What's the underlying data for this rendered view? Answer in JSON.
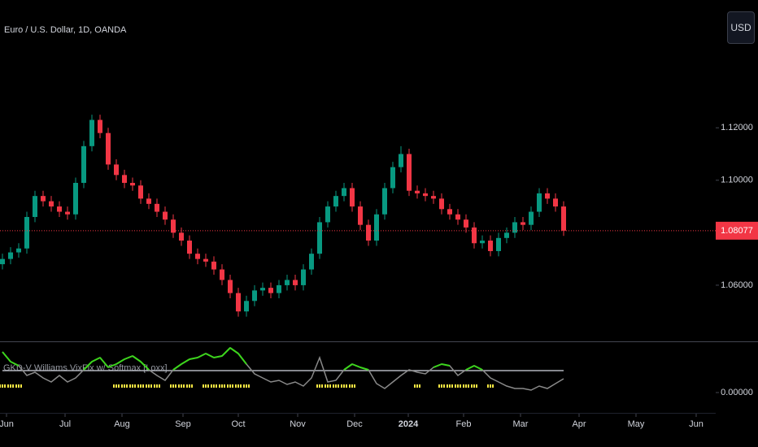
{
  "chart_data": [
    {
      "type": "candlestick",
      "title": "Euro / U.S. Dollar, 1D, OANDA",
      "currency": "USD",
      "open": [
        1.068,
        1.07,
        1.0725,
        1.074,
        1.086,
        1.094,
        1.092,
        1.09,
        1.088,
        1.087,
        1.099,
        1.113,
        1.123,
        1.118,
        1.106,
        1.102,
        1.099,
        1.098,
        1.093,
        1.091,
        1.088,
        1.085,
        1.08,
        1.077,
        1.072,
        1.07,
        1.069,
        1.066,
        1.062,
        1.057,
        1.05,
        1.054,
        1.058,
        1.059,
        1.057,
        1.06,
        1.062,
        1.06,
        1.066,
        1.072,
        1.084,
        1.09,
        1.094,
        1.097,
        1.09,
        1.083,
        1.077,
        1.087,
        1.097,
        1.105,
        1.11,
        1.096,
        1.095,
        1.094,
        1.093,
        1.089,
        1.087,
        1.085,
        1.082,
        1.076,
        1.077,
        1.073,
        1.078,
        1.08,
        1.084,
        1.083,
        1.088,
        1.095,
        1.093,
        1.09
      ],
      "high": [
        1.072,
        1.0745,
        1.076,
        1.088,
        1.096,
        1.096,
        1.094,
        1.092,
        1.09,
        1.101,
        1.115,
        1.125,
        1.125,
        1.12,
        1.108,
        1.104,
        1.101,
        1.1,
        1.095,
        1.093,
        1.09,
        1.087,
        1.082,
        1.079,
        1.074,
        1.072,
        1.071,
        1.068,
        1.064,
        1.059,
        1.056,
        1.06,
        1.061,
        1.061,
        1.062,
        1.064,
        1.064,
        1.068,
        1.074,
        1.086,
        1.092,
        1.096,
        1.099,
        1.099,
        1.092,
        1.085,
        1.089,
        1.099,
        1.107,
        1.113,
        1.112,
        1.098,
        1.097,
        1.096,
        1.095,
        1.091,
        1.089,
        1.087,
        1.084,
        1.079,
        1.079,
        1.08,
        1.082,
        1.086,
        1.086,
        1.09,
        1.097,
        1.097,
        1.095,
        1.092
      ],
      "low": [
        1.066,
        1.068,
        1.0705,
        1.072,
        1.084,
        1.09,
        1.088,
        1.086,
        1.085,
        1.085,
        1.097,
        1.111,
        1.116,
        1.104,
        1.1,
        1.097,
        1.096,
        1.091,
        1.089,
        1.086,
        1.083,
        1.078,
        1.075,
        1.07,
        1.068,
        1.067,
        1.064,
        1.06,
        1.055,
        1.048,
        1.048,
        1.052,
        1.056,
        1.055,
        1.055,
        1.058,
        1.058,
        1.058,
        1.064,
        1.07,
        1.082,
        1.088,
        1.092,
        1.088,
        1.081,
        1.075,
        1.075,
        1.085,
        1.095,
        1.103,
        1.094,
        1.093,
        1.092,
        1.091,
        1.087,
        1.085,
        1.083,
        1.08,
        1.074,
        1.074,
        1.071,
        1.071,
        1.076,
        1.078,
        1.081,
        1.081,
        1.086,
        1.091,
        1.088,
        1.0788
      ],
      "close": [
        1.07,
        1.0725,
        1.074,
        1.086,
        1.094,
        1.092,
        1.09,
        1.088,
        1.087,
        1.099,
        1.113,
        1.123,
        1.118,
        1.106,
        1.102,
        1.099,
        1.098,
        1.093,
        1.091,
        1.088,
        1.085,
        1.08,
        1.077,
        1.072,
        1.07,
        1.069,
        1.066,
        1.062,
        1.057,
        1.05,
        1.054,
        1.058,
        1.059,
        1.057,
        1.06,
        1.062,
        1.06,
        1.066,
        1.072,
        1.084,
        1.09,
        1.094,
        1.097,
        1.09,
        1.083,
        1.077,
        1.087,
        1.097,
        1.105,
        1.11,
        1.096,
        1.095,
        1.094,
        1.093,
        1.089,
        1.087,
        1.085,
        1.082,
        1.076,
        1.077,
        1.073,
        1.078,
        1.08,
        1.084,
        1.083,
        1.088,
        1.095,
        1.093,
        1.09,
        1.08077
      ],
      "up_color": "#089981",
      "down_color": "#f23645",
      "last_price_color": "#f23645",
      "xlim": [
        -0.3,
        87.7
      ],
      "xticks": [
        {
          "value": 0.5,
          "label": "Jun"
        },
        {
          "value": 7.7,
          "label": "Jul"
        },
        {
          "value": 14.7,
          "label": "Aug"
        },
        {
          "value": 22.2,
          "label": "Sep"
        },
        {
          "value": 29,
          "label": "Oct"
        },
        {
          "value": 36.3,
          "label": "Nov"
        },
        {
          "value": 43.3,
          "label": "Dec"
        },
        {
          "value": 49.9,
          "label": "2024"
        },
        {
          "value": 56.7,
          "label": "Feb"
        },
        {
          "value": 63.7,
          "label": "Mar"
        },
        {
          "value": 70.9,
          "label": "Apr"
        },
        {
          "value": 77.9,
          "label": "May"
        },
        {
          "value": 85.3,
          "label": "Jun"
        }
      ],
      "ylim": [
        1.0386,
        1.1687
      ],
      "yticks": [
        {
          "value": 1.06,
          "label": "1.06000"
        },
        {
          "value": 1.08,
          "label": "1.08000"
        },
        {
          "value": 1.1,
          "label": "1.10000"
        },
        {
          "value": 1.12,
          "label": "1.12000"
        }
      ]
    },
    {
      "type": "line",
      "title": "GKD-V Williams VixFix w/ Softmax [Loxx]",
      "values": [
        2.5,
        1.9,
        1.65,
        1.05,
        1.25,
        0.9,
        0.65,
        1.05,
        0.65,
        0.9,
        1.4,
        1.9,
        2.15,
        1.55,
        1.75,
        2.05,
        2.25,
        1.9,
        1.4,
        1.05,
        0.75,
        1.4,
        1.75,
        2.05,
        2.15,
        2.4,
        2.15,
        2.25,
        2.75,
        2.4,
        1.75,
        1.15,
        0.9,
        0.65,
        0.75,
        0.5,
        0.65,
        0.4,
        0.9,
        2.15,
        0.65,
        0.75,
        1.4,
        1.75,
        1.55,
        1.4,
        0.55,
        0.25,
        0.65,
        1.05,
        1.4,
        1.25,
        1.15,
        1.55,
        1.75,
        1.65,
        1.05,
        1.4,
        1.65,
        1.4,
        0.9,
        0.65,
        0.4,
        0.25,
        0.25,
        0.15,
        0.4,
        0.25,
        0.55,
        0.85
      ],
      "signal": [
        1,
        1,
        1,
        0,
        0,
        0,
        0,
        0,
        0,
        0,
        0,
        0,
        0,
        0,
        1,
        1,
        1,
        1,
        1,
        1,
        0,
        1,
        1,
        1,
        0,
        1,
        1,
        1,
        1,
        1,
        1,
        0,
        0,
        0,
        0,
        0,
        0,
        0,
        0,
        1,
        1,
        1,
        1,
        1,
        0,
        0,
        0,
        0,
        0,
        0,
        0,
        1,
        0,
        0,
        1,
        1,
        1,
        1,
        1,
        0,
        1,
        0,
        0,
        0,
        0,
        0,
        0,
        0,
        0,
        0
      ],
      "color": "#8a8a8a",
      "highlight_color": "#3cd61c",
      "threshold": 1.35,
      "threshold_color": "#b2b5be",
      "signal_color": "#f5e642",
      "ylim": [
        -0.85,
        2.9
      ],
      "yticks": [
        {
          "value": 0,
          "label": "0.00000"
        }
      ]
    }
  ]
}
